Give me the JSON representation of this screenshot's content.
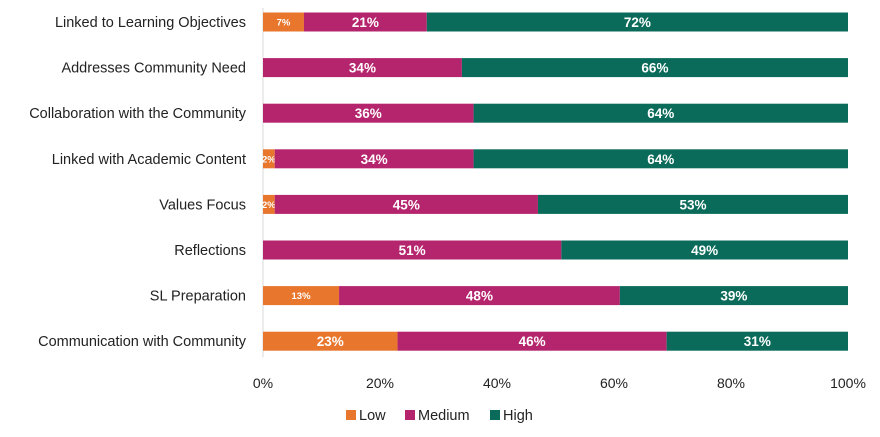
{
  "chart_data": {
    "type": "bar",
    "orientation": "horizontal",
    "stacked": true,
    "categories": [
      "Linked to Learning Objectives",
      "Addresses Community Need",
      "Collaboration with the Community",
      "Linked with Academic Content",
      "Values Focus",
      "Reflections",
      "SL Preparation",
      "Communication with Community"
    ],
    "series": [
      {
        "name": "Low",
        "color": "#e8762c",
        "values": [
          7,
          0,
          0,
          2,
          2,
          0,
          13,
          23
        ]
      },
      {
        "name": "Medium",
        "color": "#b5256e",
        "values": [
          21,
          34,
          36,
          34,
          45,
          51,
          48,
          46
        ]
      },
      {
        "name": "High",
        "color": "#0b6b5a",
        "values": [
          72,
          66,
          64,
          64,
          53,
          49,
          39,
          31
        ]
      }
    ],
    "xlim": [
      0,
      100
    ],
    "xticks": [
      "0%",
      "20%",
      "40%",
      "60%",
      "80%",
      "100%"
    ],
    "value_suffix": "%",
    "legend": "bottom",
    "grid": false
  }
}
